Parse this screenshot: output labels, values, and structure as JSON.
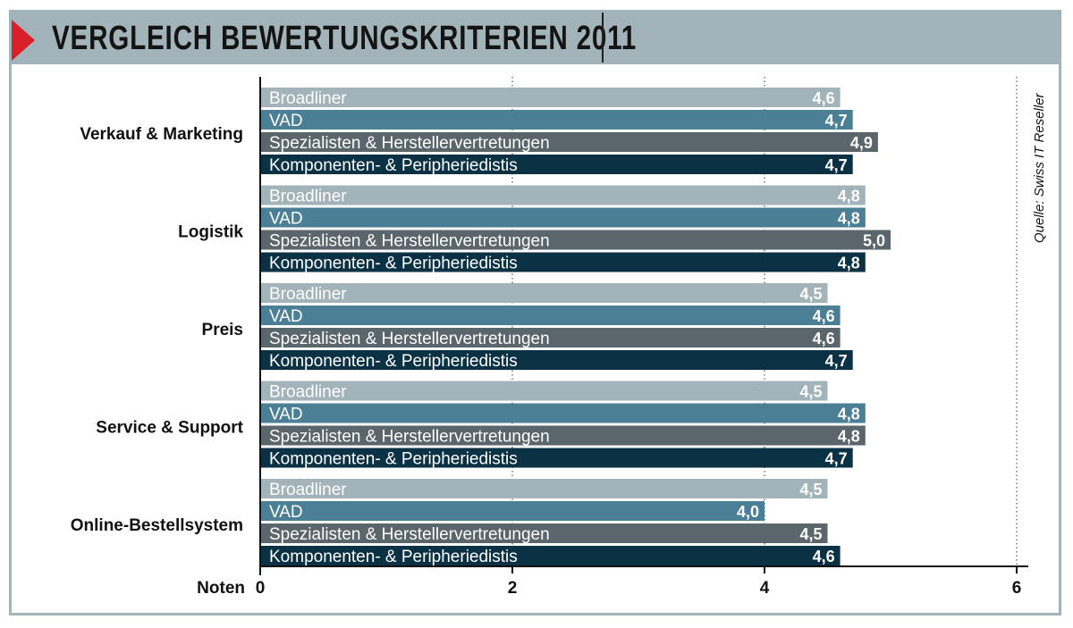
{
  "header": {
    "title": "VERGLEICH BEWERTUNGSKRITERIEN 2011"
  },
  "source": "Quelle: Swiss IT Reseller",
  "colors": {
    "header_bg": "#a3b3ba",
    "accent": "#d81f2a",
    "series": [
      "#a3b3ba",
      "#4a7f95",
      "#5a666b",
      "#0b3145"
    ]
  },
  "chart_data": {
    "type": "bar",
    "orientation": "horizontal",
    "title": "VERGLEICH BEWERTUNGSKRITERIEN 2011",
    "xlabel": "Noten",
    "ylabel": "",
    "xlim": [
      0,
      6
    ],
    "ticks": [
      0,
      2,
      4,
      6
    ],
    "grid": "dotted vertical at 2, 4, 6",
    "categories": [
      "Verkauf & Marketing",
      "Logistik",
      "Preis",
      "Service & Support",
      "Online-Bestellsystem"
    ],
    "series": [
      {
        "name": "Broadliner",
        "values": [
          4.6,
          4.8,
          4.5,
          4.5,
          4.5
        ],
        "labels": [
          "4,6",
          "4,8",
          "4,5",
          "4,5",
          "4,5"
        ]
      },
      {
        "name": "VAD",
        "values": [
          4.7,
          4.8,
          4.6,
          4.8,
          4.0
        ],
        "labels": [
          "4,7",
          "4,8",
          "4,6",
          "4,8",
          "4,0"
        ]
      },
      {
        "name": "Spezialisten & Herstellervertretungen",
        "values": [
          4.9,
          5.0,
          4.6,
          4.8,
          4.5
        ],
        "labels": [
          "4,9",
          "5,0",
          "4,6",
          "4,8",
          "4,5"
        ]
      },
      {
        "name": "Komponenten- & Peripheriedistis",
        "values": [
          4.7,
          4.8,
          4.7,
          4.7,
          4.6
        ],
        "labels": [
          "4,7",
          "4,8",
          "4,7",
          "4,7",
          "4,6"
        ]
      }
    ]
  }
}
